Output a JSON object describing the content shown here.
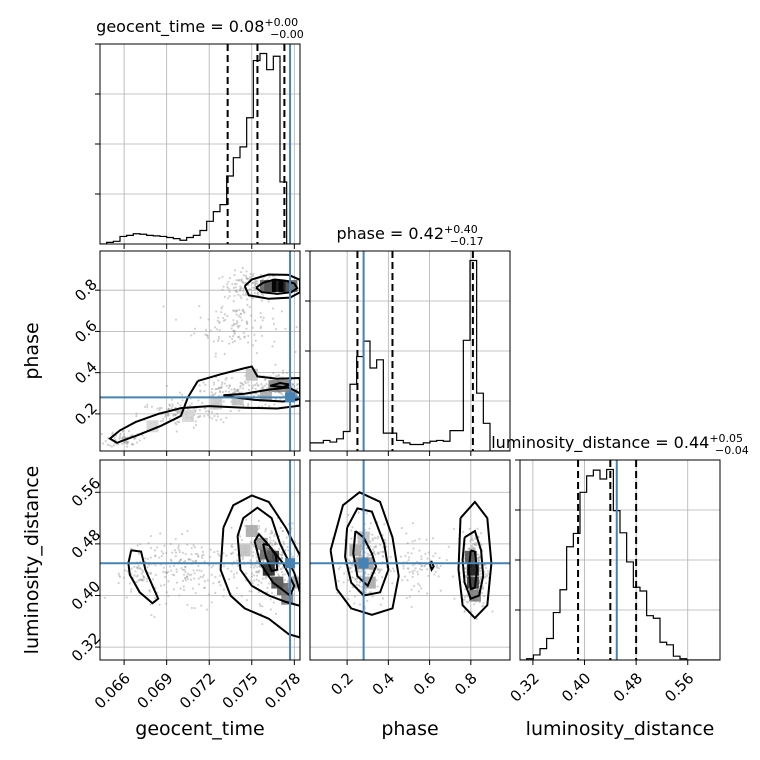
{
  "chart_data": {
    "type": "corner",
    "parameters": [
      "geocent_time",
      "phase",
      "luminosity_distance"
    ],
    "truth": {
      "geocent_time": 0.0777,
      "phase": 0.28,
      "luminosity_distance": 0.45
    },
    "colors": {
      "truth": "#4682b4",
      "hist": "#000000",
      "grid": "#b0b0b0"
    },
    "ranges": {
      "geocent_time": [
        0.0643,
        0.0784
      ],
      "phase": [
        0.02,
        0.99
      ],
      "luminosity_distance": [
        0.3,
        0.61
      ]
    },
    "ticks": {
      "geocent_time": [
        0.066,
        0.069,
        0.072,
        0.075,
        0.078
      ],
      "phase": [
        0.2,
        0.4,
        0.6,
        0.8
      ],
      "luminosity_distance": [
        0.32,
        0.4,
        0.48,
        0.56
      ]
    },
    "tick_labels": {
      "geocent_time": [
        "0.066",
        "0.069",
        "0.072",
        "0.075",
        "0.078"
      ],
      "phase": [
        "0.2",
        "0.4",
        "0.6",
        "0.8"
      ],
      "luminosity_distance": [
        "0.32",
        "0.40",
        "0.48",
        "0.56"
      ]
    },
    "titles": [
      {
        "param": "geocent_time",
        "label": "geocent_time = 0.08",
        "plus": "+0.00",
        "minus": "−0.00"
      },
      {
        "param": "phase",
        "label": "phase = 0.42",
        "plus": "+0.40",
        "minus": "−0.17"
      },
      {
        "param": "luminosity_distance",
        "label": "luminosity_distance = 0.44",
        "plus": "+0.05",
        "minus": "−0.04"
      }
    ],
    "quantiles": {
      "geocent_time": [
        0.0733,
        0.0754,
        0.0773
      ],
      "phase": [
        0.25,
        0.42,
        0.81
      ],
      "luminosity_distance": [
        0.39,
        0.44,
        0.48
      ]
    },
    "histograms": {
      "geocent_time": {
        "edges": [
          0.0643,
          0.06477,
          0.06524,
          0.06571,
          0.06618,
          0.06665,
          0.06712,
          0.06759,
          0.06806,
          0.06853,
          0.069,
          0.06947,
          0.06994,
          0.07041,
          0.07088,
          0.07135,
          0.07182,
          0.07229,
          0.07276,
          0.07323,
          0.0737,
          0.07417,
          0.07464,
          0.07511,
          0.07558,
          0.07605,
          0.07652,
          0.07699,
          0.07746,
          0.07793,
          0.0784
        ],
        "counts": [
          0.0,
          0.03,
          0.05,
          0.14,
          0.16,
          0.19,
          0.18,
          0.16,
          0.15,
          0.14,
          0.12,
          0.1,
          0.07,
          0.12,
          0.16,
          0.25,
          0.42,
          0.6,
          0.73,
          1.26,
          1.6,
          1.8,
          2.34,
          3.4,
          3.53,
          3.23,
          3.48,
          1.15,
          0.0,
          0.0
        ]
      },
      "phase": {
        "edges": [
          0.02,
          0.0523,
          0.0847,
          0.117,
          0.1493,
          0.1817,
          0.214,
          0.2463,
          0.2787,
          0.311,
          0.3433,
          0.3757,
          0.408,
          0.4403,
          0.4727,
          0.505,
          0.5373,
          0.5697,
          0.602,
          0.6343,
          0.6667,
          0.699,
          0.7313,
          0.7637,
          0.796,
          0.8283,
          0.8607,
          0.893,
          0.9253,
          0.9577,
          0.99
        ],
        "counts": [
          0.1,
          0.1,
          0.13,
          0.11,
          0.15,
          0.24,
          0.82,
          1.16,
          1.35,
          1.02,
          1.12,
          0.22,
          0.22,
          0.13,
          0.1,
          0.08,
          0.08,
          0.1,
          0.12,
          0.13,
          0.12,
          0.25,
          0.25,
          1.36,
          2.34,
          0.71,
          0.34,
          0.0,
          0.0,
          0.0
        ]
      },
      "luminosity_distance": {
        "edges": [
          0.3,
          0.3103,
          0.3207,
          0.331,
          0.3413,
          0.3517,
          0.362,
          0.3723,
          0.3827,
          0.393,
          0.4033,
          0.4137,
          0.424,
          0.4343,
          0.4447,
          0.455,
          0.4653,
          0.4757,
          0.486,
          0.4963,
          0.5067,
          0.517,
          0.5273,
          0.5377,
          0.548,
          0.5583,
          0.5687,
          0.579,
          0.5893,
          0.5997,
          0.61
        ],
        "counts": [
          0.0,
          0.02,
          0.08,
          0.18,
          0.34,
          0.75,
          1.11,
          1.79,
          2.0,
          2.65,
          2.91,
          3.0,
          2.86,
          3.01,
          2.36,
          2.01,
          1.55,
          1.15,
          1.09,
          0.7,
          0.66,
          0.28,
          0.24,
          0.06,
          0.02,
          0.0,
          0.0,
          0.0,
          0.0,
          0.0
        ]
      }
    },
    "contours_2d": {
      "phase_vs_geocent_time": [
        [
          [
            0.0753,
            0.812
          ],
          [
            0.0758,
            0.836
          ],
          [
            0.0766,
            0.852
          ],
          [
            0.0774,
            0.846
          ],
          [
            0.078,
            0.832
          ],
          [
            0.0782,
            0.81
          ],
          [
            0.0778,
            0.79
          ],
          [
            0.0768,
            0.782
          ],
          [
            0.0757,
            0.79
          ],
          [
            0.0753,
            0.812
          ]
        ],
        [
          [
            0.0745,
            0.82
          ],
          [
            0.075,
            0.852
          ],
          [
            0.0762,
            0.876
          ],
          [
            0.0776,
            0.874
          ],
          [
            0.0784,
            0.85
          ],
          [
            0.0784,
            0.79
          ],
          [
            0.0777,
            0.764
          ],
          [
            0.0762,
            0.758
          ],
          [
            0.0748,
            0.775
          ],
          [
            0.0745,
            0.82
          ]
        ],
        [
          [
            0.073,
            0.29
          ],
          [
            0.0745,
            0.298
          ],
          [
            0.0762,
            0.318
          ],
          [
            0.0776,
            0.328
          ],
          [
            0.0784,
            0.3
          ],
          [
            0.0784,
            0.272
          ],
          [
            0.0772,
            0.26
          ],
          [
            0.0752,
            0.268
          ],
          [
            0.0738,
            0.28
          ],
          [
            0.073,
            0.29
          ]
        ],
        [
          [
            0.0712,
            0.36
          ],
          [
            0.0728,
            0.392
          ],
          [
            0.0745,
            0.422
          ],
          [
            0.075,
            0.43
          ],
          [
            0.0754,
            0.382
          ],
          [
            0.0768,
            0.37
          ],
          [
            0.0784,
            0.374
          ],
          [
            0.0784,
            0.24
          ],
          [
            0.0768,
            0.226
          ],
          [
            0.0745,
            0.23
          ],
          [
            0.072,
            0.238
          ],
          [
            0.07,
            0.228
          ],
          [
            0.0684,
            0.2
          ],
          [
            0.0668,
            0.16
          ],
          [
            0.0657,
            0.12
          ],
          [
            0.065,
            0.08
          ],
          [
            0.0655,
            0.06
          ],
          [
            0.067,
            0.098
          ],
          [
            0.0686,
            0.142
          ],
          [
            0.07,
            0.19
          ],
          [
            0.0705,
            0.28
          ],
          [
            0.0712,
            0.36
          ]
        ],
        [
          [
            0.0763,
            0.336
          ],
          [
            0.077,
            0.35
          ],
          [
            0.0777,
            0.342
          ],
          [
            0.0772,
            0.33
          ],
          [
            0.0763,
            0.336
          ]
        ]
      ],
      "luminosity_distance_vs_geocent_time": [
        [
          [
            0.0758,
            0.48
          ],
          [
            0.076,
            0.46
          ],
          [
            0.0764,
            0.438
          ],
          [
            0.0768,
            0.44
          ],
          [
            0.0767,
            0.462
          ],
          [
            0.0762,
            0.478
          ],
          [
            0.0758,
            0.48
          ]
        ],
        [
          [
            0.0752,
            0.484
          ],
          [
            0.0756,
            0.45
          ],
          [
            0.0765,
            0.42
          ],
          [
            0.0777,
            0.4
          ],
          [
            0.078,
            0.415
          ],
          [
            0.0772,
            0.45
          ],
          [
            0.0762,
            0.478
          ],
          [
            0.0755,
            0.495
          ],
          [
            0.0752,
            0.484
          ]
        ],
        [
          [
            0.074,
            0.492
          ],
          [
            0.0744,
            0.52
          ],
          [
            0.0754,
            0.536
          ],
          [
            0.0764,
            0.52
          ],
          [
            0.077,
            0.48
          ],
          [
            0.078,
            0.435
          ],
          [
            0.0784,
            0.405
          ],
          [
            0.0784,
            0.384
          ],
          [
            0.0774,
            0.39
          ],
          [
            0.0762,
            0.4
          ],
          [
            0.075,
            0.415
          ],
          [
            0.0742,
            0.44
          ],
          [
            0.074,
            0.492
          ]
        ],
        [
          [
            0.073,
            0.505
          ],
          [
            0.0737,
            0.54
          ],
          [
            0.075,
            0.555
          ],
          [
            0.0762,
            0.545
          ],
          [
            0.0774,
            0.505
          ],
          [
            0.0784,
            0.462
          ],
          [
            0.0784,
            0.335
          ],
          [
            0.0776,
            0.34
          ],
          [
            0.0762,
            0.364
          ],
          [
            0.0745,
            0.38
          ],
          [
            0.0735,
            0.4
          ],
          [
            0.0728,
            0.44
          ],
          [
            0.073,
            0.505
          ]
        ],
        [
          [
            0.0665,
            0.47
          ],
          [
            0.0672,
            0.468
          ],
          [
            0.0675,
            0.44
          ],
          [
            0.068,
            0.415
          ],
          [
            0.0684,
            0.395
          ],
          [
            0.068,
            0.388
          ],
          [
            0.0671,
            0.405
          ],
          [
            0.0664,
            0.432
          ],
          [
            0.0663,
            0.45
          ],
          [
            0.0665,
            0.47
          ]
        ]
      ],
      "luminosity_distance_vs_phase": [
        [
          [
            0.24,
            0.5
          ],
          [
            0.28,
            0.49
          ],
          [
            0.32,
            0.465
          ],
          [
            0.34,
            0.445
          ],
          [
            0.3,
            0.415
          ],
          [
            0.25,
            0.43
          ],
          [
            0.23,
            0.465
          ],
          [
            0.24,
            0.5
          ]
        ],
        [
          [
            0.2,
            0.505
          ],
          [
            0.25,
            0.535
          ],
          [
            0.32,
            0.53
          ],
          [
            0.38,
            0.48
          ],
          [
            0.4,
            0.44
          ],
          [
            0.36,
            0.405
          ],
          [
            0.28,
            0.4
          ],
          [
            0.22,
            0.42
          ],
          [
            0.19,
            0.46
          ],
          [
            0.2,
            0.505
          ]
        ],
        [
          [
            0.12,
            0.47
          ],
          [
            0.18,
            0.54
          ],
          [
            0.26,
            0.56
          ],
          [
            0.36,
            0.545
          ],
          [
            0.42,
            0.49
          ],
          [
            0.45,
            0.43
          ],
          [
            0.42,
            0.38
          ],
          [
            0.32,
            0.37
          ],
          [
            0.22,
            0.38
          ],
          [
            0.15,
            0.41
          ],
          [
            0.12,
            0.47
          ]
        ],
        [
          [
            0.8,
            0.47
          ],
          [
            0.82,
            0.468
          ],
          [
            0.83,
            0.44
          ],
          [
            0.82,
            0.412
          ],
          [
            0.8,
            0.41
          ],
          [
            0.79,
            0.44
          ],
          [
            0.8,
            0.47
          ]
        ],
        [
          [
            0.77,
            0.49
          ],
          [
            0.82,
            0.5
          ],
          [
            0.85,
            0.47
          ],
          [
            0.86,
            0.43
          ],
          [
            0.84,
            0.4
          ],
          [
            0.8,
            0.395
          ],
          [
            0.77,
            0.42
          ],
          [
            0.76,
            0.455
          ],
          [
            0.77,
            0.49
          ]
        ],
        [
          [
            0.75,
            0.52
          ],
          [
            0.82,
            0.545
          ],
          [
            0.88,
            0.52
          ],
          [
            0.9,
            0.45
          ],
          [
            0.88,
            0.385
          ],
          [
            0.82,
            0.365
          ],
          [
            0.76,
            0.385
          ],
          [
            0.74,
            0.44
          ],
          [
            0.75,
            0.52
          ]
        ],
        [
          [
            0.6,
            0.45
          ],
          [
            0.61,
            0.452
          ],
          [
            0.62,
            0.445
          ],
          [
            0.61,
            0.44
          ],
          [
            0.6,
            0.45
          ]
        ]
      ]
    },
    "density_2d": {
      "phase_vs_geocent_time": [
        [
          0.0763,
          0.82,
          1.0
        ],
        [
          0.0768,
          0.82,
          1.0
        ],
        [
          0.0773,
          0.82,
          1.0
        ],
        [
          0.076,
          0.82,
          0.6
        ],
        [
          0.0778,
          0.82,
          0.6
        ],
        [
          0.0766,
          0.335,
          0.45
        ],
        [
          0.0772,
          0.335,
          0.45
        ],
        [
          0.0778,
          0.29,
          0.45
        ],
        [
          0.076,
          0.29,
          0.3
        ],
        [
          0.075,
          0.39,
          0.2
        ],
        [
          0.074,
          0.27,
          0.2
        ],
        [
          0.0725,
          0.25,
          0.15
        ],
        [
          0.0705,
          0.19,
          0.1
        ],
        [
          0.068,
          0.14,
          0.1
        ]
      ],
      "luminosity_distance_vs_geocent_time": [
        [
          0.0762,
          0.44,
          0.9
        ],
        [
          0.0765,
          0.46,
          0.8
        ],
        [
          0.076,
          0.465,
          0.6
        ],
        [
          0.0768,
          0.42,
          0.7
        ],
        [
          0.0772,
          0.41,
          0.6
        ],
        [
          0.0775,
          0.395,
          0.5
        ],
        [
          0.0757,
          0.48,
          0.4
        ],
        [
          0.075,
          0.5,
          0.3
        ],
        [
          0.078,
          0.42,
          0.3
        ],
        [
          0.0745,
          0.47,
          0.2
        ]
      ],
      "luminosity_distance_vs_phase": [
        [
          0.81,
          0.44,
          0.95
        ],
        [
          0.81,
          0.42,
          0.8
        ],
        [
          0.8,
          0.46,
          0.7
        ],
        [
          0.82,
          0.4,
          0.5
        ],
        [
          0.27,
          0.45,
          0.45
        ],
        [
          0.3,
          0.45,
          0.35
        ],
        [
          0.24,
          0.47,
          0.3
        ],
        [
          0.31,
          0.42,
          0.3
        ],
        [
          0.28,
          0.49,
          0.2
        ]
      ]
    },
    "scatter_regions_2d": {
      "phase_vs_geocent_time": [
        [
          0.075,
          0.82,
          0.002,
          0.07,
          140
        ],
        [
          0.074,
          0.64,
          0.003,
          0.14,
          120
        ],
        [
          0.077,
          0.34,
          0.0015,
          0.06,
          120
        ],
        [
          0.074,
          0.3,
          0.0035,
          0.07,
          160
        ],
        [
          0.07,
          0.2,
          0.003,
          0.06,
          120
        ],
        [
          0.066,
          0.08,
          0.0012,
          0.04,
          70
        ]
      ],
      "luminosity_distance_vs_geocent_time": [
        [
          0.0762,
          0.45,
          0.002,
          0.06,
          300
        ],
        [
          0.071,
          0.44,
          0.0045,
          0.05,
          220
        ],
        [
          0.0672,
          0.43,
          0.0012,
          0.035,
          60
        ]
      ],
      "luminosity_distance_vs_phase": [
        [
          0.28,
          0.45,
          0.1,
          0.06,
          260
        ],
        [
          0.82,
          0.44,
          0.06,
          0.06,
          260
        ],
        [
          0.55,
          0.45,
          0.12,
          0.05,
          80
        ]
      ]
    }
  }
}
